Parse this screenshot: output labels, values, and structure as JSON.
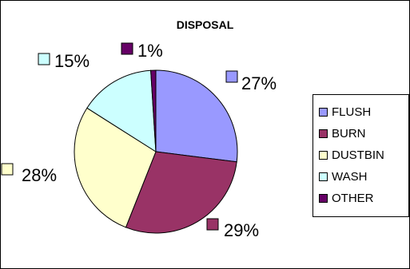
{
  "chart_data": {
    "type": "pie",
    "title": "DISPOSAL",
    "categories": [
      "FLUSH",
      "BURN",
      "DUSTBIN",
      "WASH",
      "OTHER"
    ],
    "values": [
      27,
      29,
      28,
      15,
      1
    ],
    "labels": [
      "27%",
      "29%",
      "28%",
      "15%",
      "1%"
    ],
    "colors": [
      "#9999ff",
      "#993366",
      "#ffffcc",
      "#ccffff",
      "#660066"
    ],
    "legend_position": "right"
  }
}
